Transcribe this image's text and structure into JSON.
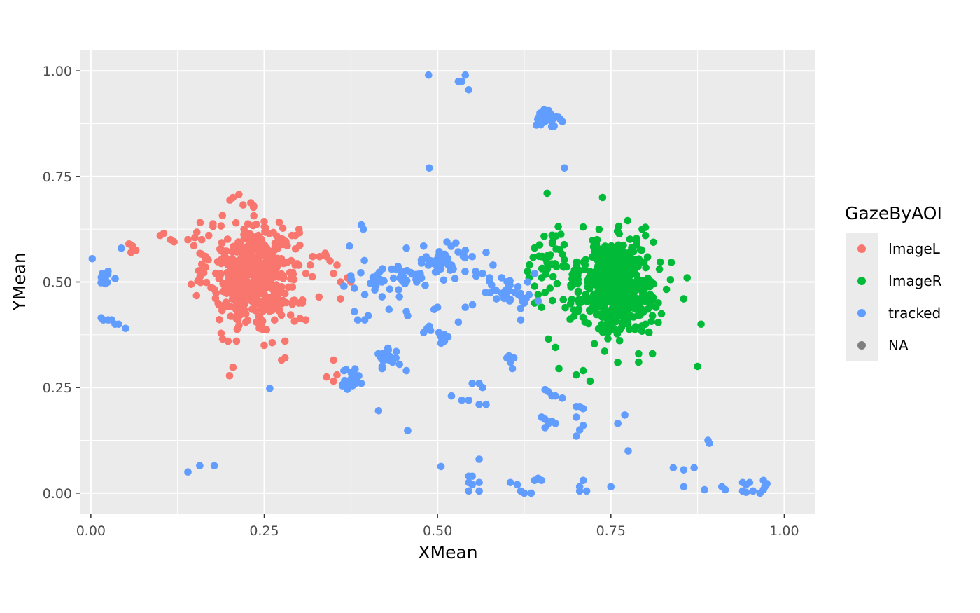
{
  "chart_data": {
    "type": "scatter",
    "title": "",
    "xlabel": "XMean",
    "ylabel": "YMean",
    "xlim": [
      -0.015,
      1.045
    ],
    "ylim": [
      -0.05,
      1.05
    ],
    "xticks": [
      0.0,
      0.25,
      0.5,
      0.75,
      1.0
    ],
    "xtick_labels": [
      "0.00",
      "0.25",
      "0.50",
      "0.75",
      "1.00"
    ],
    "yticks": [
      0.0,
      0.25,
      0.5,
      0.75,
      1.0
    ],
    "ytick_labels": [
      "0.00",
      "0.25",
      "0.50",
      "0.75",
      "1.00"
    ],
    "grid": true,
    "legend": {
      "title": "GazeByAOI",
      "position": "right",
      "entries": [
        {
          "label": "ImageL",
          "color": "#F8766D"
        },
        {
          "label": "ImageR",
          "color": "#00BA38"
        },
        {
          "label": "tracked",
          "color": "#619CFF"
        },
        {
          "label": "NA",
          "color": "#7F7F7F"
        }
      ]
    },
    "series": [
      {
        "name": "ImageL",
        "color": "#F8766D",
        "clusters": [
          {
            "cx": 0.235,
            "cy": 0.52,
            "sx": 0.032,
            "sy": 0.062,
            "n": 520
          }
        ],
        "points": [
          [
            0.205,
            0.7
          ],
          [
            0.1,
            0.61
          ],
          [
            0.105,
            0.615
          ],
          [
            0.115,
            0.6
          ],
          [
            0.12,
            0.595
          ],
          [
            0.055,
            0.59
          ],
          [
            0.06,
            0.585
          ],
          [
            0.065,
            0.575
          ],
          [
            0.058,
            0.57
          ],
          [
            0.14,
            0.6
          ],
          [
            0.15,
            0.605
          ],
          [
            0.16,
            0.6
          ],
          [
            0.17,
            0.61
          ],
          [
            0.29,
            0.61
          ],
          [
            0.295,
            0.61
          ],
          [
            0.3,
            0.54
          ],
          [
            0.31,
            0.52
          ],
          [
            0.32,
            0.56
          ],
          [
            0.33,
            0.56
          ],
          [
            0.34,
            0.56
          ],
          [
            0.345,
            0.55
          ],
          [
            0.35,
            0.52
          ],
          [
            0.355,
            0.54
          ],
          [
            0.36,
            0.5
          ],
          [
            0.365,
            0.49
          ],
          [
            0.37,
            0.51
          ],
          [
            0.375,
            0.5
          ],
          [
            0.36,
            0.46
          ],
          [
            0.3,
            0.45
          ],
          [
            0.305,
            0.45
          ],
          [
            0.31,
            0.41
          ],
          [
            0.35,
            0.315
          ],
          [
            0.34,
            0.275
          ],
          [
            0.35,
            0.265
          ],
          [
            0.355,
            0.28
          ],
          [
            0.205,
            0.298
          ],
          [
            0.2,
            0.278
          ],
          [
            0.21,
            0.36
          ],
          [
            0.19,
            0.365
          ],
          [
            0.25,
            0.35
          ],
          [
            0.28,
            0.36
          ],
          [
            0.275,
            0.315
          ],
          [
            0.28,
            0.32
          ]
        ]
      },
      {
        "name": "ImageR",
        "color": "#00BA38",
        "clusters": [
          {
            "cx": 0.765,
            "cy": 0.49,
            "sx": 0.025,
            "sy": 0.055,
            "n": 420
          },
          {
            "cx": 0.66,
            "cy": 0.55,
            "sx": 0.015,
            "sy": 0.035,
            "n": 45
          },
          {
            "cx": 0.71,
            "cy": 0.48,
            "sx": 0.02,
            "sy": 0.05,
            "n": 60
          }
        ],
        "points": [
          [
            0.658,
            0.71
          ],
          [
            0.738,
            0.7
          ],
          [
            0.71,
            0.63
          ],
          [
            0.73,
            0.6
          ],
          [
            0.795,
            0.625
          ],
          [
            0.8,
            0.61
          ],
          [
            0.66,
            0.365
          ],
          [
            0.67,
            0.345
          ],
          [
            0.675,
            0.295
          ],
          [
            0.7,
            0.28
          ],
          [
            0.71,
            0.29
          ],
          [
            0.72,
            0.265
          ],
          [
            0.79,
            0.31
          ],
          [
            0.79,
            0.33
          ],
          [
            0.81,
            0.33
          ],
          [
            0.855,
            0.46
          ],
          [
            0.86,
            0.51
          ],
          [
            0.88,
            0.4
          ],
          [
            0.875,
            0.3
          ],
          [
            0.64,
            0.49
          ],
          [
            0.64,
            0.45
          ],
          [
            0.645,
            0.47
          ],
          [
            0.65,
            0.44
          ],
          [
            0.655,
            0.475
          ],
          [
            0.8,
            0.4
          ],
          [
            0.805,
            0.38
          ],
          [
            0.81,
            0.46
          ],
          [
            0.815,
            0.44
          ],
          [
            0.81,
            0.42
          ]
        ]
      },
      {
        "name": "tracked",
        "color": "#619CFF",
        "clusters": [
          {
            "cx": 0.66,
            "cy": 0.89,
            "sx": 0.008,
            "sy": 0.008,
            "n": 35
          },
          {
            "cx": 0.51,
            "cy": 0.55,
            "sx": 0.015,
            "sy": 0.02,
            "n": 40
          },
          {
            "cx": 0.43,
            "cy": 0.51,
            "sx": 0.025,
            "sy": 0.02,
            "n": 35
          },
          {
            "cx": 0.6,
            "cy": 0.48,
            "sx": 0.02,
            "sy": 0.02,
            "n": 30
          },
          {
            "cx": 0.375,
            "cy": 0.27,
            "sx": 0.006,
            "sy": 0.01,
            "n": 22
          },
          {
            "cx": 0.43,
            "cy": 0.325,
            "sx": 0.008,
            "sy": 0.007,
            "n": 20
          },
          {
            "cx": 0.019,
            "cy": 0.51,
            "sx": 0.004,
            "sy": 0.015,
            "n": 16
          }
        ],
        "points": [
          [
            0.487,
            0.99
          ],
          [
            0.54,
            0.99
          ],
          [
            0.535,
            0.975
          ],
          [
            0.53,
            0.975
          ],
          [
            0.545,
            0.955
          ],
          [
            0.488,
            0.77
          ],
          [
            0.683,
            0.77
          ],
          [
            0.65,
            0.88
          ],
          [
            0.68,
            0.88
          ],
          [
            0.002,
            0.555
          ],
          [
            0.044,
            0.58
          ],
          [
            0.035,
            0.508
          ],
          [
            0.015,
            0.415
          ],
          [
            0.018,
            0.41
          ],
          [
            0.025,
            0.41
          ],
          [
            0.03,
            0.41
          ],
          [
            0.035,
            0.4
          ],
          [
            0.04,
            0.4
          ],
          [
            0.05,
            0.39
          ],
          [
            0.39,
            0.635
          ],
          [
            0.393,
            0.625
          ],
          [
            0.373,
            0.585
          ],
          [
            0.375,
            0.515
          ],
          [
            0.365,
            0.49
          ],
          [
            0.38,
            0.485
          ],
          [
            0.38,
            0.43
          ],
          [
            0.385,
            0.41
          ],
          [
            0.395,
            0.41
          ],
          [
            0.4,
            0.42
          ],
          [
            0.395,
            0.47
          ],
          [
            0.41,
            0.5
          ],
          [
            0.42,
            0.465
          ],
          [
            0.43,
            0.435
          ],
          [
            0.445,
            0.465
          ],
          [
            0.455,
            0.43
          ],
          [
            0.457,
            0.42
          ],
          [
            0.45,
            0.525
          ],
          [
            0.455,
            0.58
          ],
          [
            0.47,
            0.5
          ],
          [
            0.475,
            0.52
          ],
          [
            0.48,
            0.585
          ],
          [
            0.485,
            0.39
          ],
          [
            0.488,
            0.395
          ],
          [
            0.48,
            0.38
          ],
          [
            0.49,
            0.385
          ],
          [
            0.495,
            0.435
          ],
          [
            0.5,
            0.44
          ],
          [
            0.502,
            0.38
          ],
          [
            0.505,
            0.37
          ],
          [
            0.51,
            0.375
          ],
          [
            0.505,
            0.355
          ],
          [
            0.51,
            0.36
          ],
          [
            0.515,
            0.37
          ],
          [
            0.53,
            0.405
          ],
          [
            0.54,
            0.44
          ],
          [
            0.54,
            0.575
          ],
          [
            0.55,
            0.56
          ],
          [
            0.555,
            0.525
          ],
          [
            0.565,
            0.52
          ],
          [
            0.575,
            0.51
          ],
          [
            0.57,
            0.57
          ],
          [
            0.58,
            0.54
          ],
          [
            0.585,
            0.46
          ],
          [
            0.6,
            0.32
          ],
          [
            0.603,
            0.325
          ],
          [
            0.605,
            0.31
          ],
          [
            0.608,
            0.295
          ],
          [
            0.61,
            0.32
          ],
          [
            0.62,
            0.41
          ],
          [
            0.625,
            0.45
          ],
          [
            0.63,
            0.5
          ],
          [
            0.64,
            0.52
          ],
          [
            0.645,
            0.455
          ],
          [
            0.42,
            0.33
          ],
          [
            0.425,
            0.32
          ],
          [
            0.44,
            0.32
          ],
          [
            0.435,
            0.31
          ],
          [
            0.42,
            0.3
          ],
          [
            0.445,
            0.305
          ],
          [
            0.455,
            0.29
          ],
          [
            0.42,
            0.295
          ],
          [
            0.415,
            0.195
          ],
          [
            0.457,
            0.148
          ],
          [
            0.365,
            0.29
          ],
          [
            0.37,
            0.255
          ],
          [
            0.38,
            0.26
          ],
          [
            0.39,
            0.26
          ],
          [
            0.258,
            0.248
          ],
          [
            0.14,
            0.05
          ],
          [
            0.157,
            0.065
          ],
          [
            0.178,
            0.065
          ],
          [
            0.505,
            0.063
          ],
          [
            0.52,
            0.23
          ],
          [
            0.535,
            0.22
          ],
          [
            0.545,
            0.22
          ],
          [
            0.55,
            0.26
          ],
          [
            0.56,
            0.26
          ],
          [
            0.565,
            0.25
          ],
          [
            0.56,
            0.21
          ],
          [
            0.57,
            0.21
          ],
          [
            0.56,
            0.08
          ],
          [
            0.545,
            0.04
          ],
          [
            0.55,
            0.04
          ],
          [
            0.545,
            0.025
          ],
          [
            0.55,
            0.02
          ],
          [
            0.56,
            0.025
          ],
          [
            0.545,
            0.005
          ],
          [
            0.56,
            0.005
          ],
          [
            0.605,
            0.025
          ],
          [
            0.615,
            0.02
          ],
          [
            0.62,
            0.005
          ],
          [
            0.625,
            0.0
          ],
          [
            0.635,
            0.0
          ],
          [
            0.64,
            0.03
          ],
          [
            0.645,
            0.035
          ],
          [
            0.65,
            0.03
          ],
          [
            0.655,
            0.245
          ],
          [
            0.66,
            0.24
          ],
          [
            0.665,
            0.23
          ],
          [
            0.67,
            0.23
          ],
          [
            0.68,
            0.225
          ],
          [
            0.65,
            0.18
          ],
          [
            0.655,
            0.175
          ],
          [
            0.66,
            0.165
          ],
          [
            0.665,
            0.17
          ],
          [
            0.67,
            0.165
          ],
          [
            0.655,
            0.155
          ],
          [
            0.7,
            0.205
          ],
          [
            0.705,
            0.205
          ],
          [
            0.71,
            0.2
          ],
          [
            0.7,
            0.18
          ],
          [
            0.71,
            0.16
          ],
          [
            0.705,
            0.15
          ],
          [
            0.7,
            0.135
          ],
          [
            0.705,
            0.015
          ],
          [
            0.71,
            0.03
          ],
          [
            0.705,
            0.005
          ],
          [
            0.715,
            0.005
          ],
          [
            0.75,
            0.015
          ],
          [
            0.76,
            0.165
          ],
          [
            0.77,
            0.185
          ],
          [
            0.775,
            0.1
          ],
          [
            0.84,
            0.06
          ],
          [
            0.855,
            0.055
          ],
          [
            0.87,
            0.06
          ],
          [
            0.855,
            0.015
          ],
          [
            0.885,
            0.008
          ],
          [
            0.89,
            0.125
          ],
          [
            0.892,
            0.118
          ],
          [
            0.91,
            0.015
          ],
          [
            0.915,
            0.008
          ],
          [
            0.94,
            0.025
          ],
          [
            0.945,
            0.02
          ],
          [
            0.95,
            0.025
          ],
          [
            0.94,
            0.005
          ],
          [
            0.945,
            0.002
          ],
          [
            0.955,
            0.005
          ],
          [
            0.965,
            0.0
          ],
          [
            0.97,
            0.03
          ],
          [
            0.975,
            0.022
          ],
          [
            0.97,
            0.008
          ],
          [
            0.972,
            0.015
          ]
        ]
      },
      {
        "name": "NA",
        "color": "#7F7F7F",
        "points": []
      }
    ]
  }
}
